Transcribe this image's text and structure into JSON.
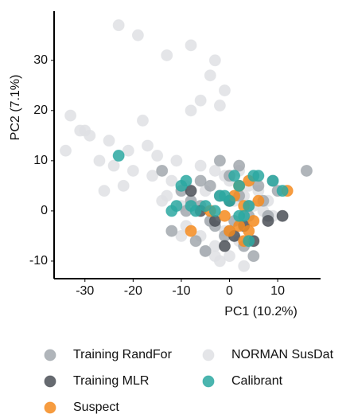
{
  "chart_data": {
    "type": "scatter",
    "x_label": "PC1 (10.2%)",
    "y_label": "PC2 (7.1%)",
    "xlim": [
      -36.4,
      18.9
    ],
    "ylim": [
      -13.5,
      39.8
    ],
    "xticks": [
      -30,
      -20,
      -10,
      0,
      10
    ],
    "yticks": [
      -10,
      0,
      10,
      20,
      30
    ],
    "series": [
      {
        "name": "Training RandFor",
        "color": "#a2a8ae",
        "x": [
          -14,
          -10,
          -8,
          -6,
          -4,
          -2,
          0,
          2,
          4,
          6,
          8,
          10,
          -12,
          -9,
          -7,
          -5,
          -3,
          -1,
          1,
          3,
          5,
          7,
          9,
          16,
          -6,
          -4,
          -2,
          0,
          2,
          4
        ],
        "y": [
          8,
          4,
          2,
          6,
          -2,
          3,
          7,
          9,
          1,
          5,
          -1,
          4,
          -4,
          0,
          -6,
          -8,
          -3,
          -5,
          -2,
          -7,
          -9,
          2,
          6,
          8,
          1,
          5,
          10,
          -4,
          3,
          -1
        ]
      },
      {
        "name": "NORMAN SusDat",
        "color": "#dfe1e4",
        "x": [
          -23,
          -19,
          -13,
          -8,
          -3,
          -33,
          -30,
          -29,
          -25,
          -21,
          -17,
          -15,
          -11,
          -6,
          -3,
          -1,
          0,
          2,
          4,
          6,
          8,
          -27,
          -24,
          -20,
          -16,
          -12,
          -9,
          -5,
          -2,
          1,
          3,
          5,
          7,
          9,
          -14,
          -10,
          -7,
          -4,
          -1,
          2,
          -5,
          -3,
          -2,
          -1,
          -4,
          -6,
          -8,
          -18,
          -22,
          -26,
          -13,
          -9,
          -6,
          -3,
          0,
          3,
          -31,
          -34,
          -10,
          -2
        ],
        "y": [
          37,
          35,
          31,
          33,
          30,
          19,
          16,
          15,
          14,
          12,
          13,
          11,
          10,
          9,
          8,
          7,
          6,
          8,
          5,
          4,
          2,
          10,
          9,
          8,
          7,
          6,
          5,
          4,
          3,
          2,
          3,
          1,
          0,
          -1,
          2,
          1,
          0,
          -2,
          -4,
          -6,
          -8,
          -9,
          -10,
          24,
          27,
          22,
          20,
          18,
          5,
          4,
          3,
          -3,
          -5,
          -7,
          -9,
          -11,
          16,
          12,
          -5,
          21
        ]
      },
      {
        "name": "Training MLR",
        "color": "#4b5057",
        "x": [
          -8,
          -3,
          -1,
          1,
          3,
          5,
          8,
          -6,
          0,
          11
        ],
        "y": [
          4,
          -2,
          -7,
          -5,
          -3,
          -6,
          -2,
          0,
          2,
          -1
        ]
      },
      {
        "name": "Calibrant",
        "color": "#2ba8a1",
        "x": [
          -23,
          -12,
          -11,
          -10,
          -9,
          -8,
          -7,
          -5,
          -3,
          -1,
          0,
          1,
          2,
          3,
          4,
          5,
          6,
          9,
          11,
          -2,
          4,
          2
        ],
        "y": [
          11,
          0,
          1,
          5,
          6,
          1,
          0,
          1,
          0,
          3,
          2,
          7,
          5,
          -1,
          1,
          7,
          7,
          6,
          4,
          3,
          -6,
          -1
        ]
      },
      {
        "name": "Suspect",
        "color": "#f58b1f",
        "x": [
          -8,
          -4,
          0,
          1,
          2,
          3,
          4,
          5,
          3,
          -1,
          12,
          2,
          6,
          4
        ],
        "y": [
          -4,
          0,
          -4,
          3,
          5,
          1,
          -4,
          -2,
          -6,
          -1,
          4,
          -3,
          2,
          6
        ]
      }
    ]
  }
}
